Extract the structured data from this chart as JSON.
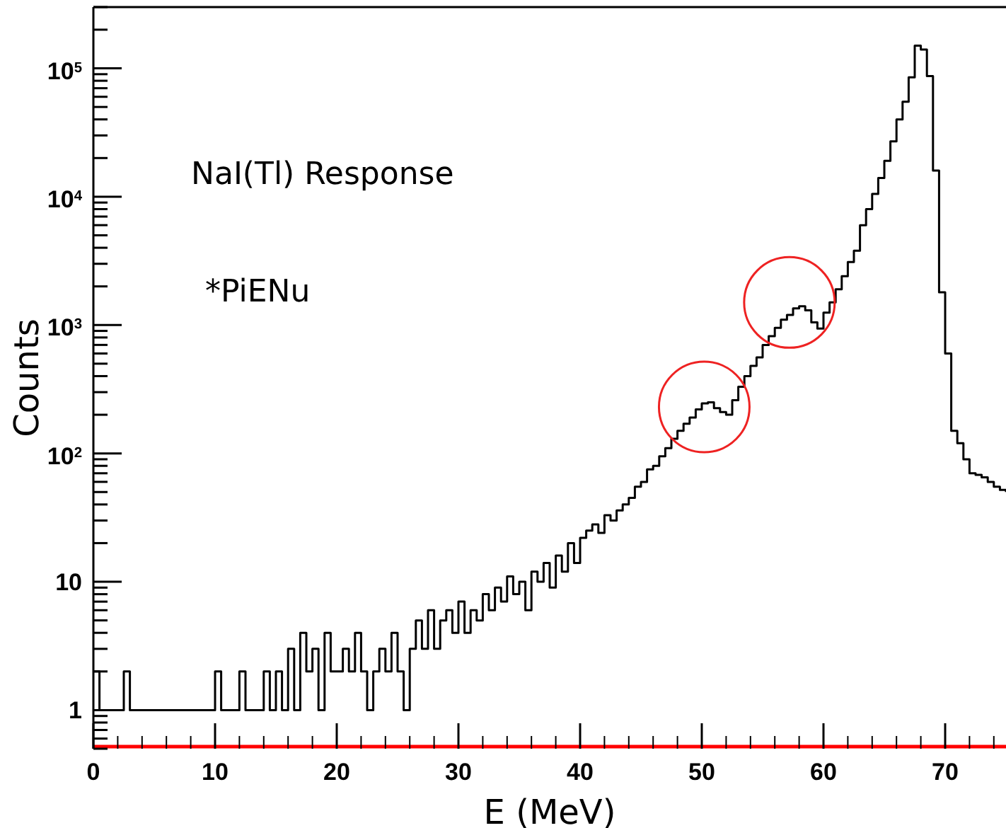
{
  "chart_data": {
    "type": "step",
    "xlabel": "E (MeV)",
    "ylabel": "Counts",
    "log": "y",
    "grid": false,
    "xlim": [
      0,
      75
    ],
    "xticks": [
      0,
      10,
      20,
      30,
      40,
      50,
      60,
      70
    ],
    "ylim": [
      0.5,
      300000
    ],
    "yticks": [
      1,
      10,
      {
        "value": 100,
        "label": "10$^{2}$"
      },
      {
        "value": 1000,
        "label": "10$^{3}$"
      },
      {
        "value": 10000,
        "label": "10$^{4}$"
      },
      {
        "value": 100000,
        "label": "10$^{5}$"
      }
    ],
    "annotations": [
      "NaI(Tl) Response",
      "*PiENu"
    ],
    "series": [
      {
        "type": "line",
        "color": "#ff0000",
        "x": [
          0,
          75
        ],
        "values": [
          0.52,
          0.52
        ]
      },
      {
        "color": "#000000",
        "x": [
          0,
          0.5,
          2.5,
          3,
          10,
          10.5,
          12,
          12.5,
          13,
          14,
          14.5,
          15,
          15.5,
          16,
          16.5,
          17,
          17.5,
          18,
          18.5,
          19,
          19.5,
          20,
          20.5,
          21,
          21.5,
          22,
          22.5,
          23,
          23.5,
          24,
          24.5,
          25,
          25.5,
          26,
          26.5,
          27,
          27.5,
          28,
          28.5,
          29,
          29.5,
          30,
          30.5,
          31,
          31.5,
          32,
          32.5,
          33,
          33.5,
          34,
          34.5,
          35,
          35.5,
          36,
          36.5,
          37,
          37.5,
          38,
          38.5,
          39,
          39.5,
          40,
          40.5,
          41,
          41.5,
          42,
          42.5,
          43,
          43.5,
          44,
          44.5,
          45,
          45.5,
          46,
          46.5,
          47,
          47.5,
          48,
          48.5,
          49,
          49.5,
          50,
          50.5,
          51,
          51.5,
          52,
          52.5,
          53,
          53.5,
          54,
          54.5,
          55,
          55.5,
          56,
          56.5,
          57,
          57.5,
          58,
          58.5,
          59,
          59.5,
          60,
          60.5,
          61,
          61.5,
          62,
          62.5,
          63,
          63.5,
          64,
          64.5,
          65,
          65.5,
          66,
          66.5,
          67,
          67.5,
          68,
          68.5,
          69,
          69.5,
          70,
          70.5,
          71,
          71.5,
          72,
          72.5,
          73,
          73.5,
          74,
          74.5,
          75
        ],
        "values": [
          2,
          1,
          2,
          1,
          2,
          1,
          2,
          1,
          1,
          2,
          1,
          2,
          1,
          3,
          1,
          4,
          2,
          3,
          1,
          4,
          2,
          2,
          3,
          2,
          4,
          2,
          1,
          2,
          3,
          2,
          4,
          2,
          1,
          3,
          5,
          3,
          6,
          3,
          5,
          6,
          4,
          7,
          4,
          6,
          5,
          8,
          6,
          9,
          7,
          11,
          8,
          10,
          6,
          12,
          10,
          14,
          9,
          16,
          12,
          20,
          14,
          22,
          25,
          28,
          24,
          33,
          30,
          36,
          40,
          45,
          55,
          60,
          75,
          80,
          95,
          110,
          130,
          150,
          170,
          190,
          220,
          245,
          250,
          225,
          210,
          200,
          260,
          330,
          400,
          480,
          560,
          700,
          820,
          950,
          1100,
          1200,
          1350,
          1400,
          1300,
          1050,
          940,
          1250,
          1500,
          1900,
          2400,
          3100,
          3800,
          6000,
          8000,
          10500,
          14000,
          19000,
          27000,
          40000,
          55000,
          85000,
          150000,
          140000,
          87000,
          16000,
          1800,
          600,
          150,
          120,
          90,
          70,
          68,
          65,
          60,
          55,
          52,
          50
        ]
      }
    ]
  }
}
